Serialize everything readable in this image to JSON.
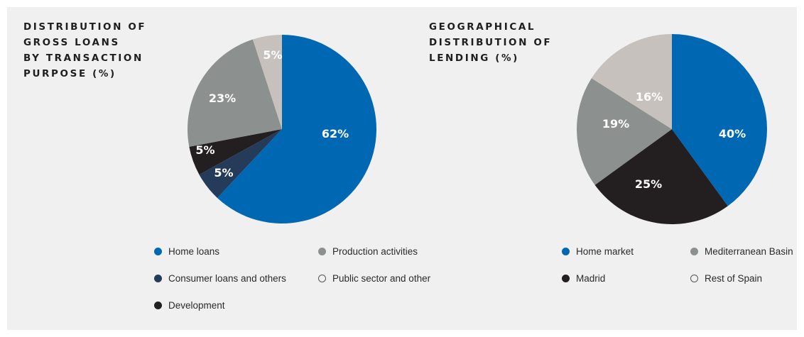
{
  "colors": {
    "home": "#0068b3",
    "consumer": "#253b5a",
    "development": "#231f20",
    "production": "#8c9190",
    "public": "#c7c1bd",
    "label": "#ffffff"
  },
  "chart_data": [
    {
      "type": "pie",
      "title": "DISTRIBUTION OF\nGROSS LOANS\nBY TRANSACTION\nPURPOSE (%)",
      "slices": [
        {
          "name": "Home loans",
          "value": 62,
          "label": "62%",
          "color_key": "home"
        },
        {
          "name": "Consumer loans and others",
          "value": 5,
          "label": "5%",
          "color_key": "consumer"
        },
        {
          "name": "Development",
          "value": 5,
          "label": "5%",
          "color_key": "development"
        },
        {
          "name": "Production activities",
          "value": 23,
          "label": "23%",
          "color_key": "production"
        },
        {
          "name": "Public sector and other",
          "value": 5,
          "label": "5%",
          "color_key": "public"
        }
      ],
      "legend": [
        {
          "label": "Home loans",
          "color_key": "home"
        },
        {
          "label": "Production activities",
          "color_key": "production"
        },
        {
          "label": "Consumer loans and others",
          "color_key": "consumer"
        },
        {
          "label": "Public sector and other",
          "color_key": "public",
          "hollow": true
        },
        {
          "label": "Development",
          "color_key": "development"
        }
      ]
    },
    {
      "type": "pie",
      "title": "GEOGRAPHICAL\nDISTRIBUTION OF\nLENDING (%)",
      "slices": [
        {
          "name": "Home market",
          "value": 40,
          "label": "40%",
          "color_key": "home"
        },
        {
          "name": "Madrid",
          "value": 25,
          "label": "25%",
          "color_key": "development"
        },
        {
          "name": "Mediterranean Basin",
          "value": 19,
          "label": "19%",
          "color_key": "production"
        },
        {
          "name": "Rest of Spain",
          "value": 16,
          "label": "16%",
          "color_key": "public"
        }
      ],
      "legend": [
        {
          "label": "Home market",
          "color_key": "home"
        },
        {
          "label": "Mediterranean Basin",
          "color_key": "production"
        },
        {
          "label": "Madrid",
          "color_key": "development"
        },
        {
          "label": "Rest of Spain",
          "color_key": "public",
          "hollow": true
        }
      ]
    }
  ]
}
